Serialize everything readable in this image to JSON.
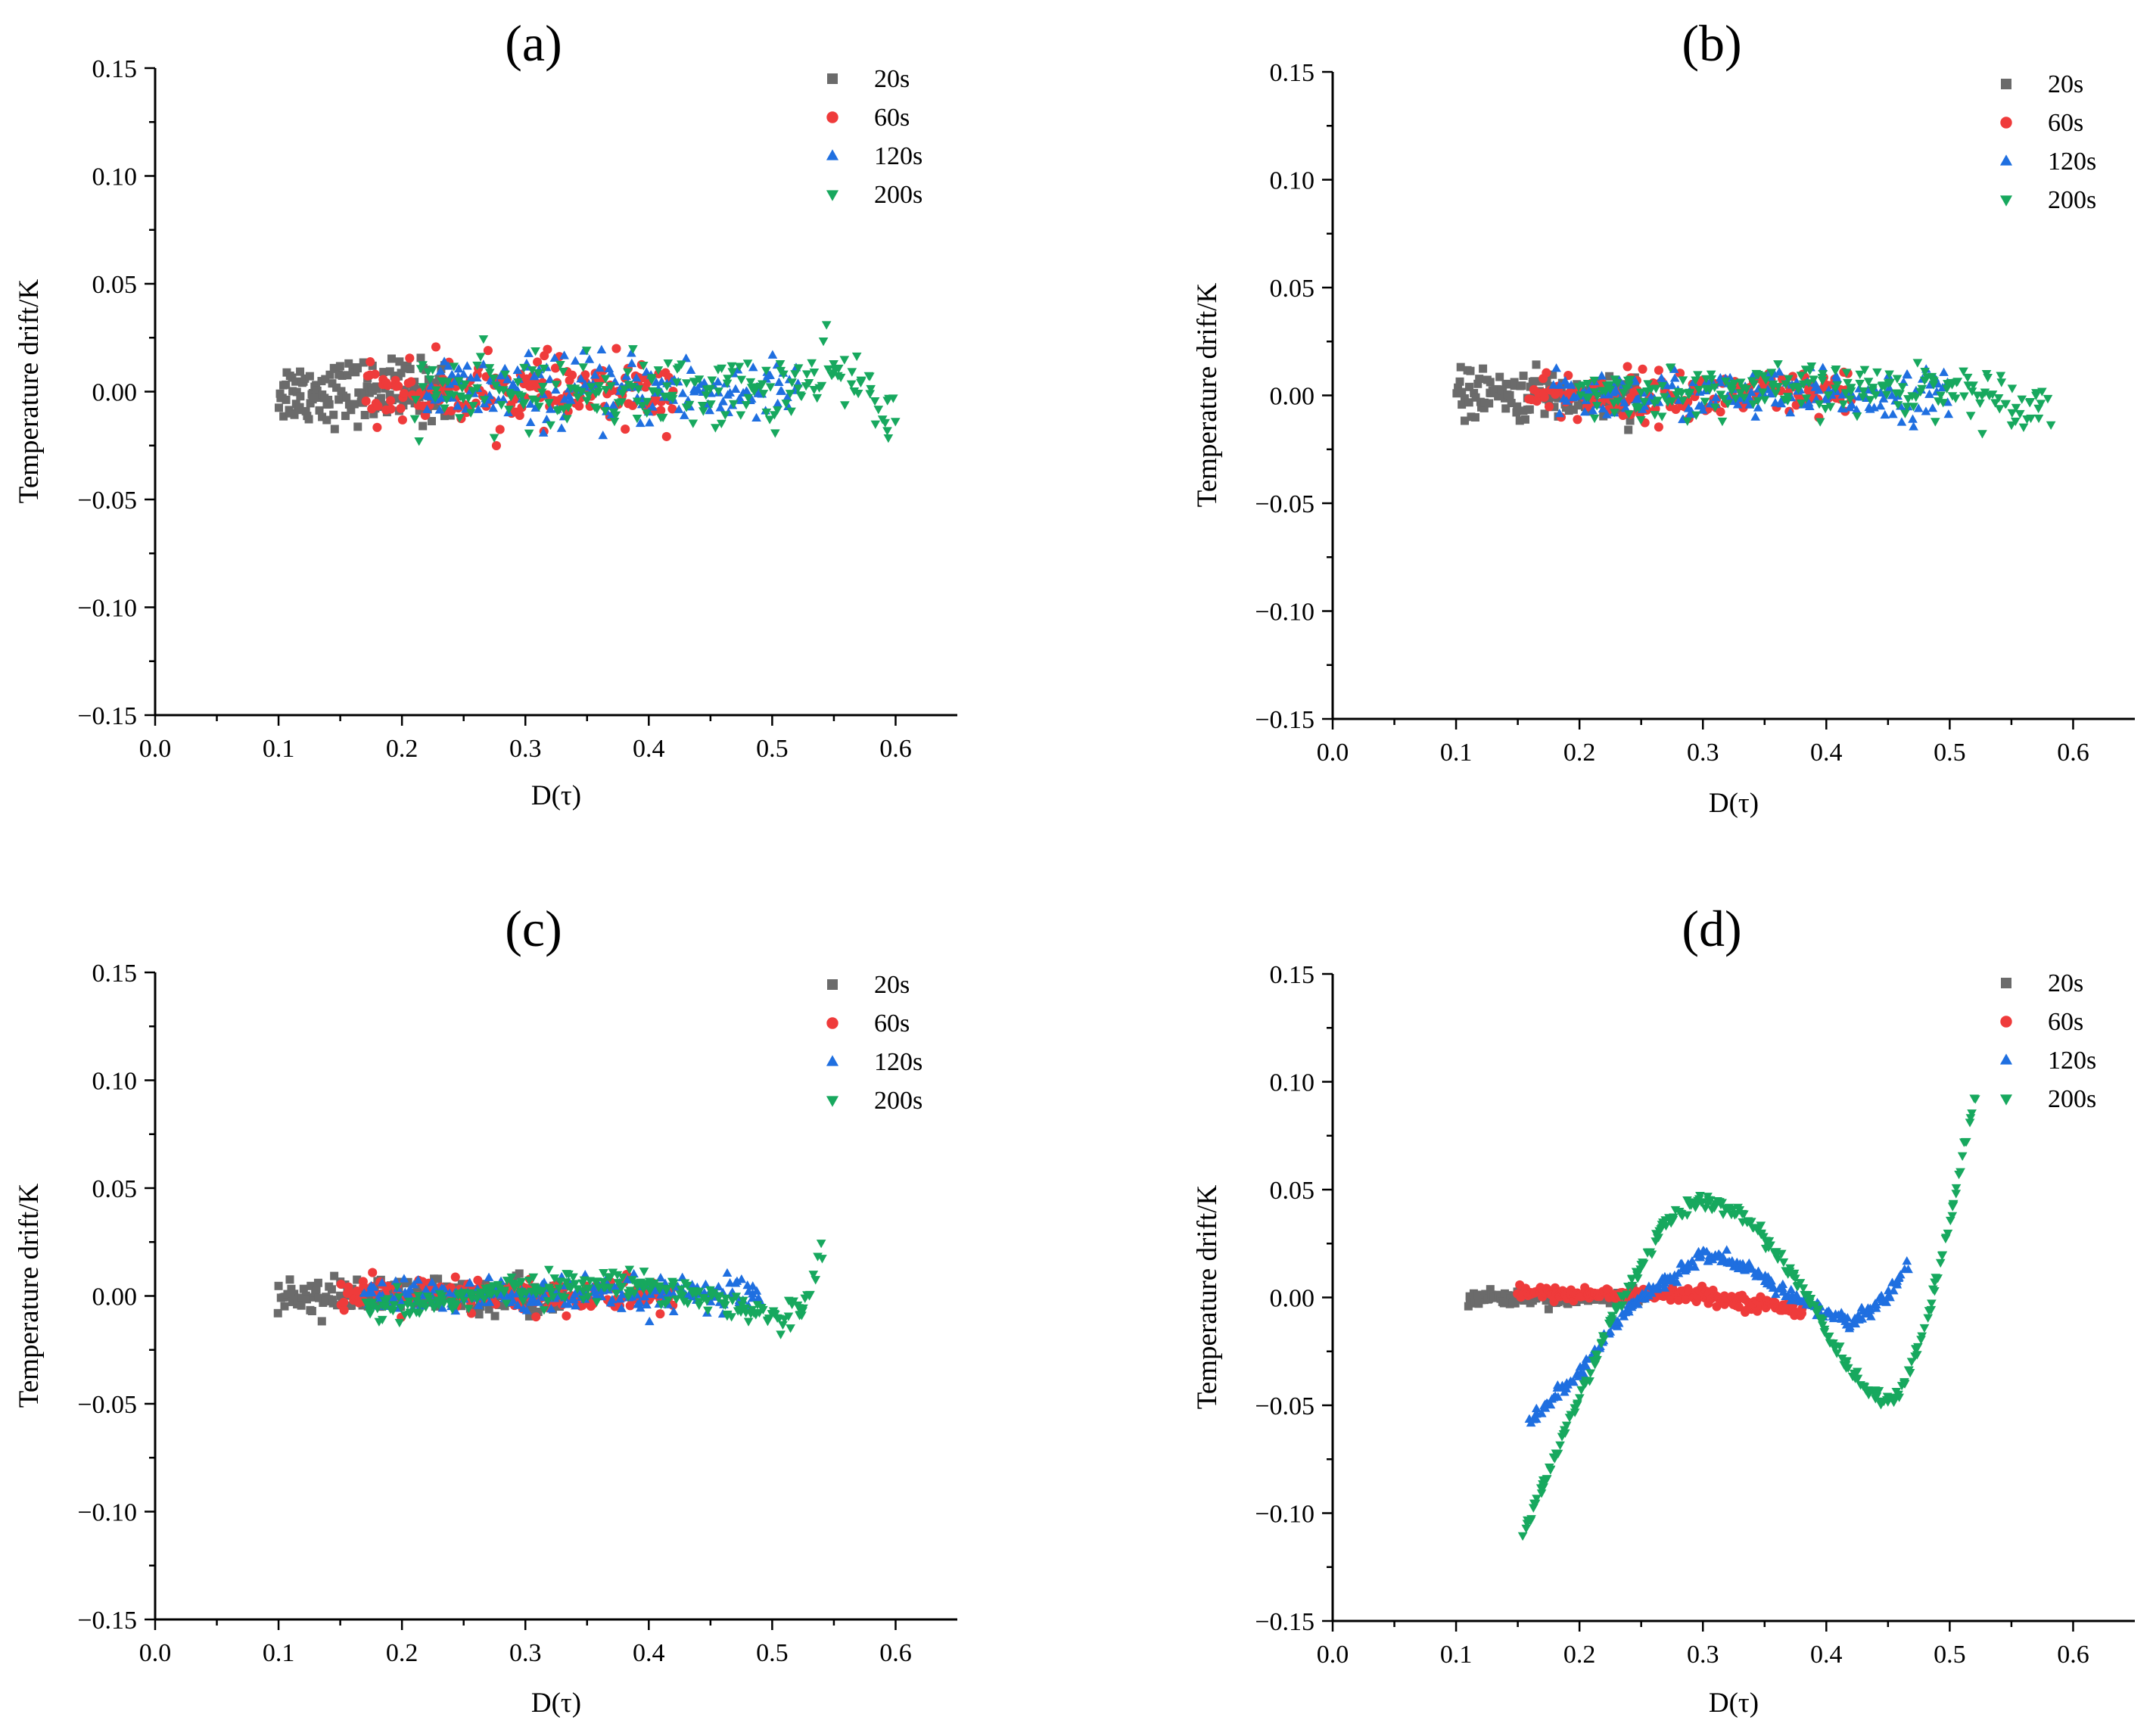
{
  "figure": {
    "xlabel": "D(τ)",
    "ylabel": "Temperature drift/K",
    "colors": {
      "20s": "#6b6b6b",
      "60s": "#ef3b3b",
      "120s": "#1f6fe0",
      "200s": "#17a85e"
    },
    "markers": {
      "20s": "square",
      "60s": "circle",
      "120s": "triangle-up",
      "200s": "triangle-down"
    }
  },
  "chart_data": [
    {
      "type": "scatter",
      "title": "(a)",
      "xlabel": "D(τ)",
      "ylabel": "Temperature drift/K",
      "xlim": [
        0.0,
        0.65
      ],
      "ylim": [
        -0.15,
        0.15
      ],
      "xticks": [
        "0.0",
        "0.1",
        "0.2",
        "0.3",
        "0.4",
        "0.5",
        "0.6"
      ],
      "yticks": [
        "−0.15",
        "−0.10",
        "−0.05",
        "0.00",
        "0.05",
        "0.10",
        "0.15"
      ],
      "legend": [
        "20s",
        "60s",
        "120s",
        "200s"
      ],
      "legend_position": "top-right",
      "series": [
        {
          "name": "20s",
          "x_range": [
            0.1,
            0.24
          ],
          "trend": [
            [
              0.1,
              0.0
            ],
            [
              0.24,
              0.0
            ]
          ],
          "noise": 0.009,
          "n": 160
        },
        {
          "name": "60s",
          "x_range": [
            0.17,
            0.42
          ],
          "trend": [
            [
              0.17,
              0.0
            ],
            [
              0.42,
              0.0
            ]
          ],
          "noise": 0.009,
          "n": 170
        },
        {
          "name": "120s",
          "x_range": [
            0.22,
            0.52
          ],
          "trend": [
            [
              0.22,
              0.0
            ],
            [
              0.52,
              0.0
            ]
          ],
          "noise": 0.01,
          "n": 190
        },
        {
          "name": "200s",
          "x_range": [
            0.21,
            0.6
          ],
          "trend": [
            [
              0.21,
              0.0
            ],
            [
              0.5,
              0.0
            ],
            [
              0.56,
              0.008
            ],
            [
              0.6,
              -0.008
            ]
          ],
          "noise": 0.01,
          "n": 230
        }
      ]
    },
    {
      "type": "scatter",
      "title": "(b)",
      "xlabel": "D(τ)",
      "ylabel": "Temperature drift/K",
      "xlim": [
        0.0,
        0.65
      ],
      "ylim": [
        -0.15,
        0.15
      ],
      "xticks": [
        "0.0",
        "0.1",
        "0.2",
        "0.3",
        "0.4",
        "0.5",
        "0.6"
      ],
      "yticks": [
        "−0.15",
        "−0.10",
        "−0.05",
        "0.00",
        "0.05",
        "0.10",
        "0.15"
      ],
      "legend": [
        "20s",
        "60s",
        "120s",
        "200s"
      ],
      "legend_position": "top-right",
      "series": [
        {
          "name": "20s",
          "x_range": [
            0.1,
            0.25
          ],
          "trend": [
            [
              0.1,
              0.0
            ],
            [
              0.25,
              0.0
            ]
          ],
          "noise": 0.007,
          "n": 140
        },
        {
          "name": "60s",
          "x_range": [
            0.16,
            0.42
          ],
          "trend": [
            [
              0.16,
              0.0
            ],
            [
              0.42,
              0.0
            ]
          ],
          "noise": 0.007,
          "n": 170
        },
        {
          "name": "120s",
          "x_range": [
            0.18,
            0.5
          ],
          "trend": [
            [
              0.18,
              0.0
            ],
            [
              0.5,
              0.0
            ]
          ],
          "noise": 0.007,
          "n": 190
        },
        {
          "name": "200s",
          "x_range": [
            0.2,
            0.58
          ],
          "trend": [
            [
              0.2,
              0.0
            ],
            [
              0.5,
              0.004
            ],
            [
              0.58,
              -0.005
            ]
          ],
          "noise": 0.007,
          "n": 230
        }
      ]
    },
    {
      "type": "scatter",
      "title": "(c)",
      "xlabel": "D(τ)",
      "ylabel": "Temperature drift/K",
      "xlim": [
        0.0,
        0.65
      ],
      "ylim": [
        -0.15,
        0.15
      ],
      "xticks": [
        "0.0",
        "0.1",
        "0.2",
        "0.3",
        "0.4",
        "0.5",
        "0.6"
      ],
      "yticks": [
        "−0.15",
        "−0.10",
        "−0.05",
        "0.00",
        "0.05",
        "0.10",
        "0.15"
      ],
      "legend": [
        "20s",
        "60s",
        "120s",
        "200s"
      ],
      "legend_position": "top-right",
      "series": [
        {
          "name": "20s",
          "x_range": [
            0.1,
            0.33
          ],
          "trend": [
            [
              0.1,
              0.0
            ],
            [
              0.33,
              0.0
            ]
          ],
          "noise": 0.005,
          "n": 180
        },
        {
          "name": "60s",
          "x_range": [
            0.15,
            0.42
          ],
          "trend": [
            [
              0.15,
              0.0
            ],
            [
              0.42,
              0.0
            ]
          ],
          "noise": 0.005,
          "n": 200
        },
        {
          "name": "120s",
          "x_range": [
            0.17,
            0.49
          ],
          "trend": [
            [
              0.17,
              0.0
            ],
            [
              0.49,
              0.0
            ]
          ],
          "noise": 0.005,
          "n": 220
        },
        {
          "name": "200s",
          "x_range": [
            0.17,
            0.54
          ],
          "trend": [
            [
              0.17,
              -0.008
            ],
            [
              0.3,
              0.004
            ],
            [
              0.4,
              0.006
            ],
            [
              0.47,
              -0.004
            ],
            [
              0.51,
              -0.012
            ],
            [
              0.53,
              0.0
            ],
            [
              0.54,
              0.026
            ]
          ],
          "noise": 0.004,
          "n": 260
        }
      ]
    },
    {
      "type": "scatter",
      "title": "(d)",
      "xlabel": "D(τ)",
      "ylabel": "Temperature drift/K",
      "xlim": [
        0.0,
        0.65
      ],
      "ylim": [
        -0.15,
        0.15
      ],
      "xticks": [
        "0.0",
        "0.1",
        "0.2",
        "0.3",
        "0.4",
        "0.5",
        "0.6"
      ],
      "yticks": [
        "−0.15",
        "−0.10",
        "−0.05",
        "0.00",
        "0.05",
        "0.10",
        "0.15"
      ],
      "legend": [
        "20s",
        "60s",
        "120s",
        "200s"
      ],
      "legend_position": "top-right",
      "series": [
        {
          "name": "20s",
          "x_range": [
            0.11,
            0.25
          ],
          "trend": [
            [
              0.11,
              0.0
            ],
            [
              0.25,
              0.0
            ]
          ],
          "noise": 0.002,
          "n": 140
        },
        {
          "name": "60s",
          "x_range": [
            0.15,
            0.38
          ],
          "trend": [
            [
              0.15,
              0.002
            ],
            [
              0.3,
              0.001
            ],
            [
              0.38,
              -0.006
            ]
          ],
          "noise": 0.002,
          "n": 200
        },
        {
          "name": "120s",
          "x_range": [
            0.16,
            0.465
          ],
          "trend": [
            [
              0.16,
              -0.057
            ],
            [
              0.2,
              -0.035
            ],
            [
              0.24,
              -0.005
            ],
            [
              0.3,
              0.02
            ],
            [
              0.34,
              0.012
            ],
            [
              0.38,
              -0.002
            ],
            [
              0.42,
              -0.012
            ],
            [
              0.45,
              0.0
            ],
            [
              0.465,
              0.015
            ]
          ],
          "noise": 0.002,
          "n": 260
        },
        {
          "name": "200s",
          "x_range": [
            0.155,
            0.52
          ],
          "trend": [
            [
              0.155,
              -0.108
            ],
            [
              0.19,
              -0.06
            ],
            [
              0.23,
              -0.005
            ],
            [
              0.27,
              0.035
            ],
            [
              0.3,
              0.046
            ],
            [
              0.34,
              0.035
            ],
            [
              0.38,
              0.005
            ],
            [
              0.42,
              -0.035
            ],
            [
              0.445,
              -0.048
            ],
            [
              0.46,
              -0.045
            ],
            [
              0.48,
              -0.015
            ],
            [
              0.5,
              0.035
            ],
            [
              0.52,
              0.093
            ]
          ],
          "noise": 0.002,
          "n": 300
        }
      ]
    }
  ]
}
